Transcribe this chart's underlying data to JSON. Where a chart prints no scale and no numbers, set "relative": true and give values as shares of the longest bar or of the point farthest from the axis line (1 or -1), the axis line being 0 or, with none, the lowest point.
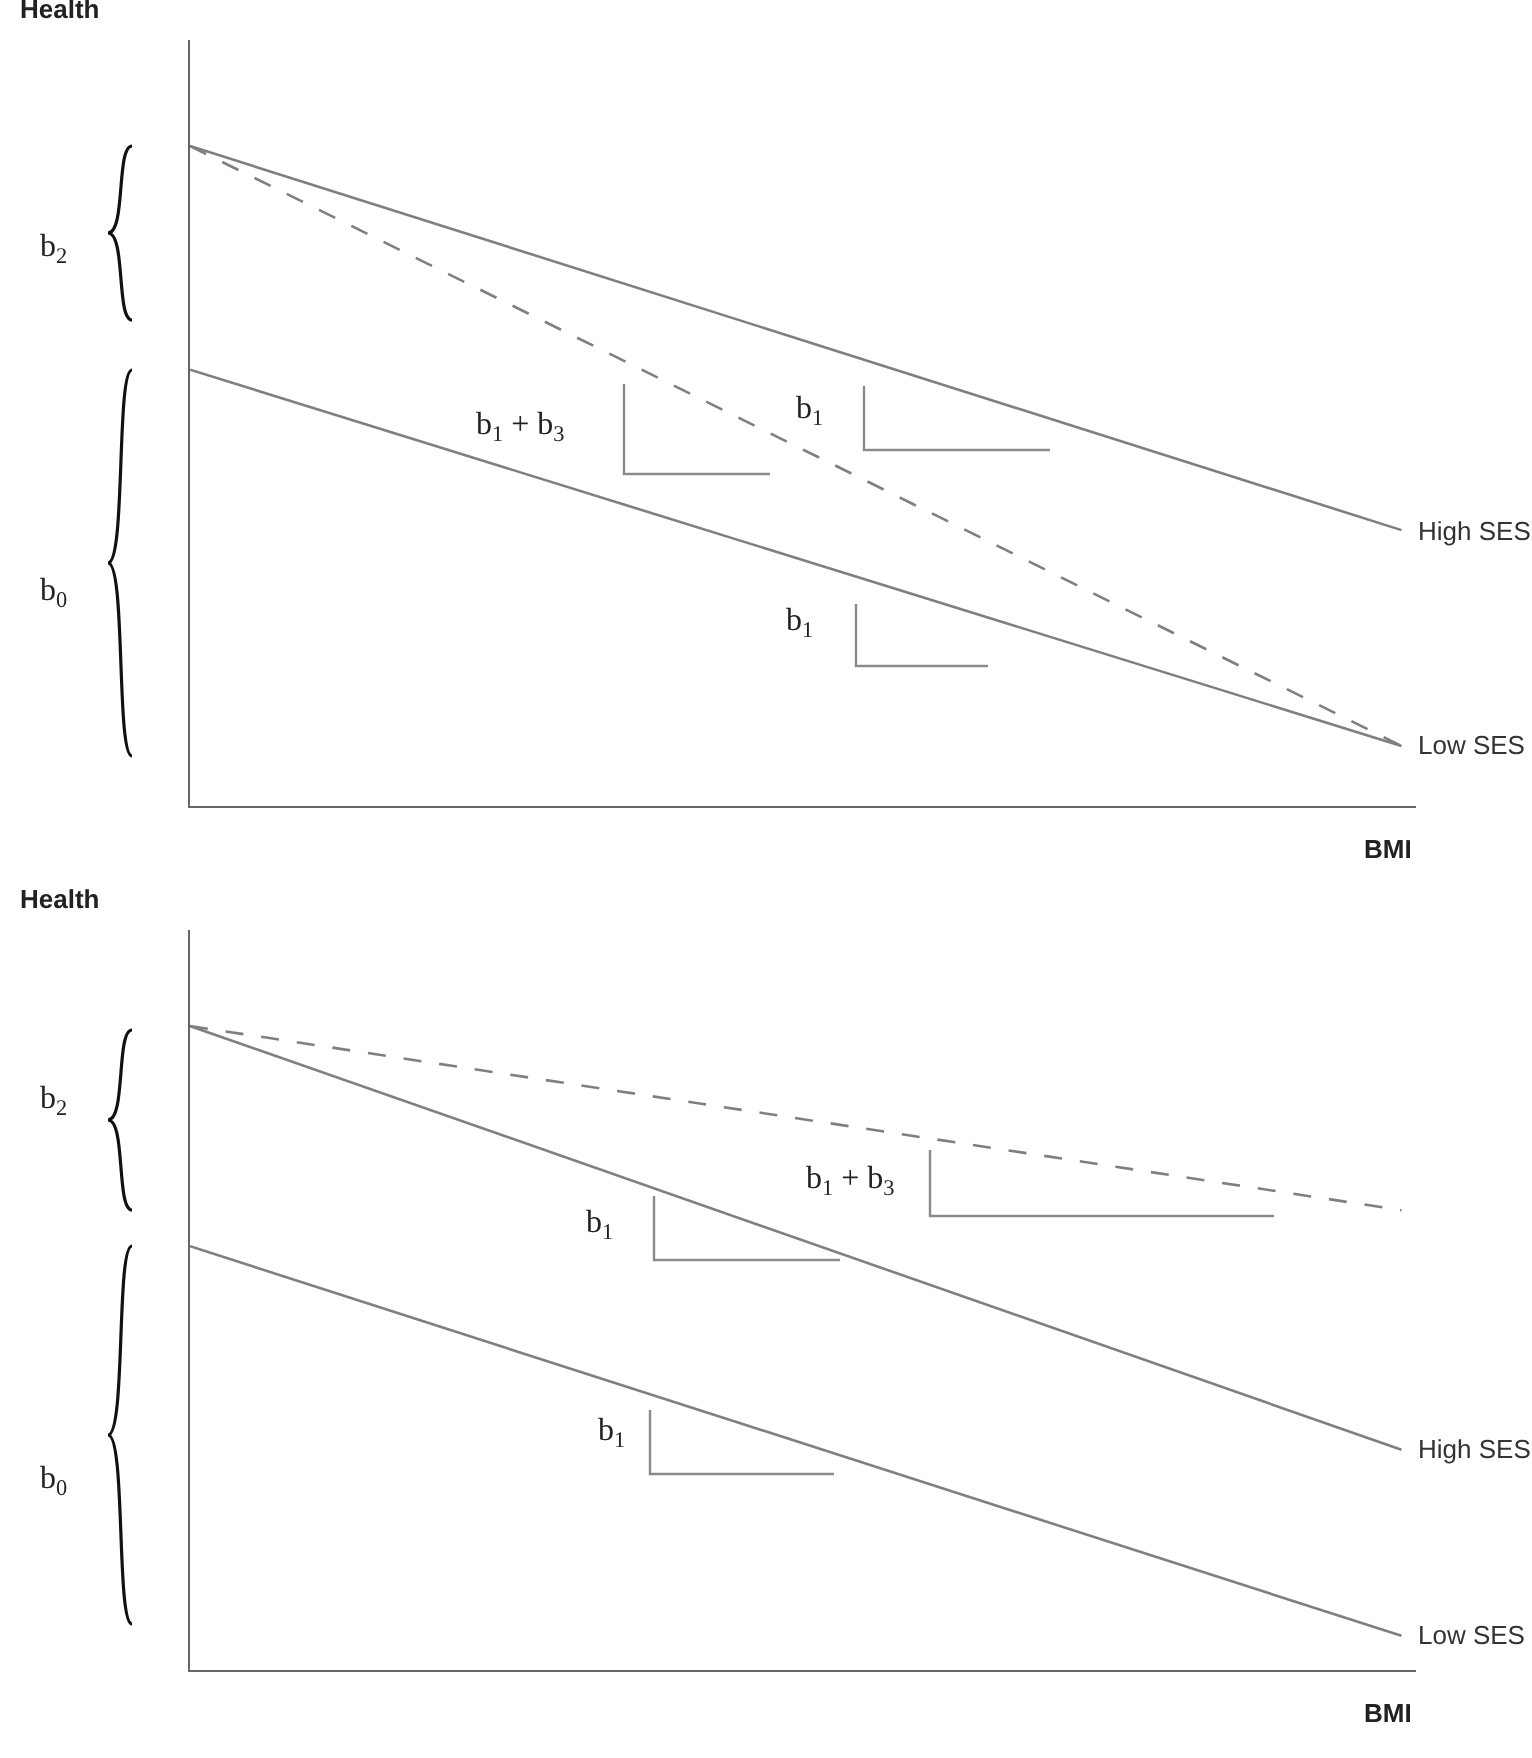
{
  "chart_data": [
    {
      "type": "line",
      "relative": true,
      "categories": [
        null,
        null
      ],
      "xlabel": "BMI",
      "ylabel": "Health",
      "legend": false,
      "marker": "none",
      "line_style": "solid",
      "series": [
        {
          "name": "High SES",
          "color": "#7f7f7f",
          "values": [
            1,
            0.418
          ]
        },
        {
          "name": "Low SES",
          "color": "#7f7f7f",
          "values": [
            0.661,
            0.091
          ]
        },
        {
          "color": "#7f7f7f",
          "line_style": "dashed",
          "values": [
            1,
            0.091
          ]
        }
      ],
      "annotations": [
        "b$_{2}$",
        "b$_{0}$",
        "b$_{1}$ + b$_{3}$",
        "b$_{1}$",
        "b$_{1}$"
      ]
    },
    {
      "type": "line",
      "relative": true,
      "categories": [
        null,
        null
      ],
      "xlabel": "BMI",
      "ylabel": "Health",
      "legend": false,
      "marker": "none",
      "line_style": "solid",
      "series": [
        {
          "name": "High SES",
          "color": "#7f7f7f",
          "values": [
            1,
            0.342
          ]
        },
        {
          "name": "Low SES",
          "color": "#7f7f7f",
          "values": [
            0.658,
            0.053
          ]
        },
        {
          "color": "#7f7f7f",
          "line_style": "dashed",
          "values": [
            1,
            0.714
          ]
        }
      ],
      "annotations": [
        "b$_{2}$",
        "b$_{0}$",
        "b$_{1}$ + b$_{3}$",
        "b$_{1}$",
        "b$_{1}$"
      ]
    }
  ]
}
